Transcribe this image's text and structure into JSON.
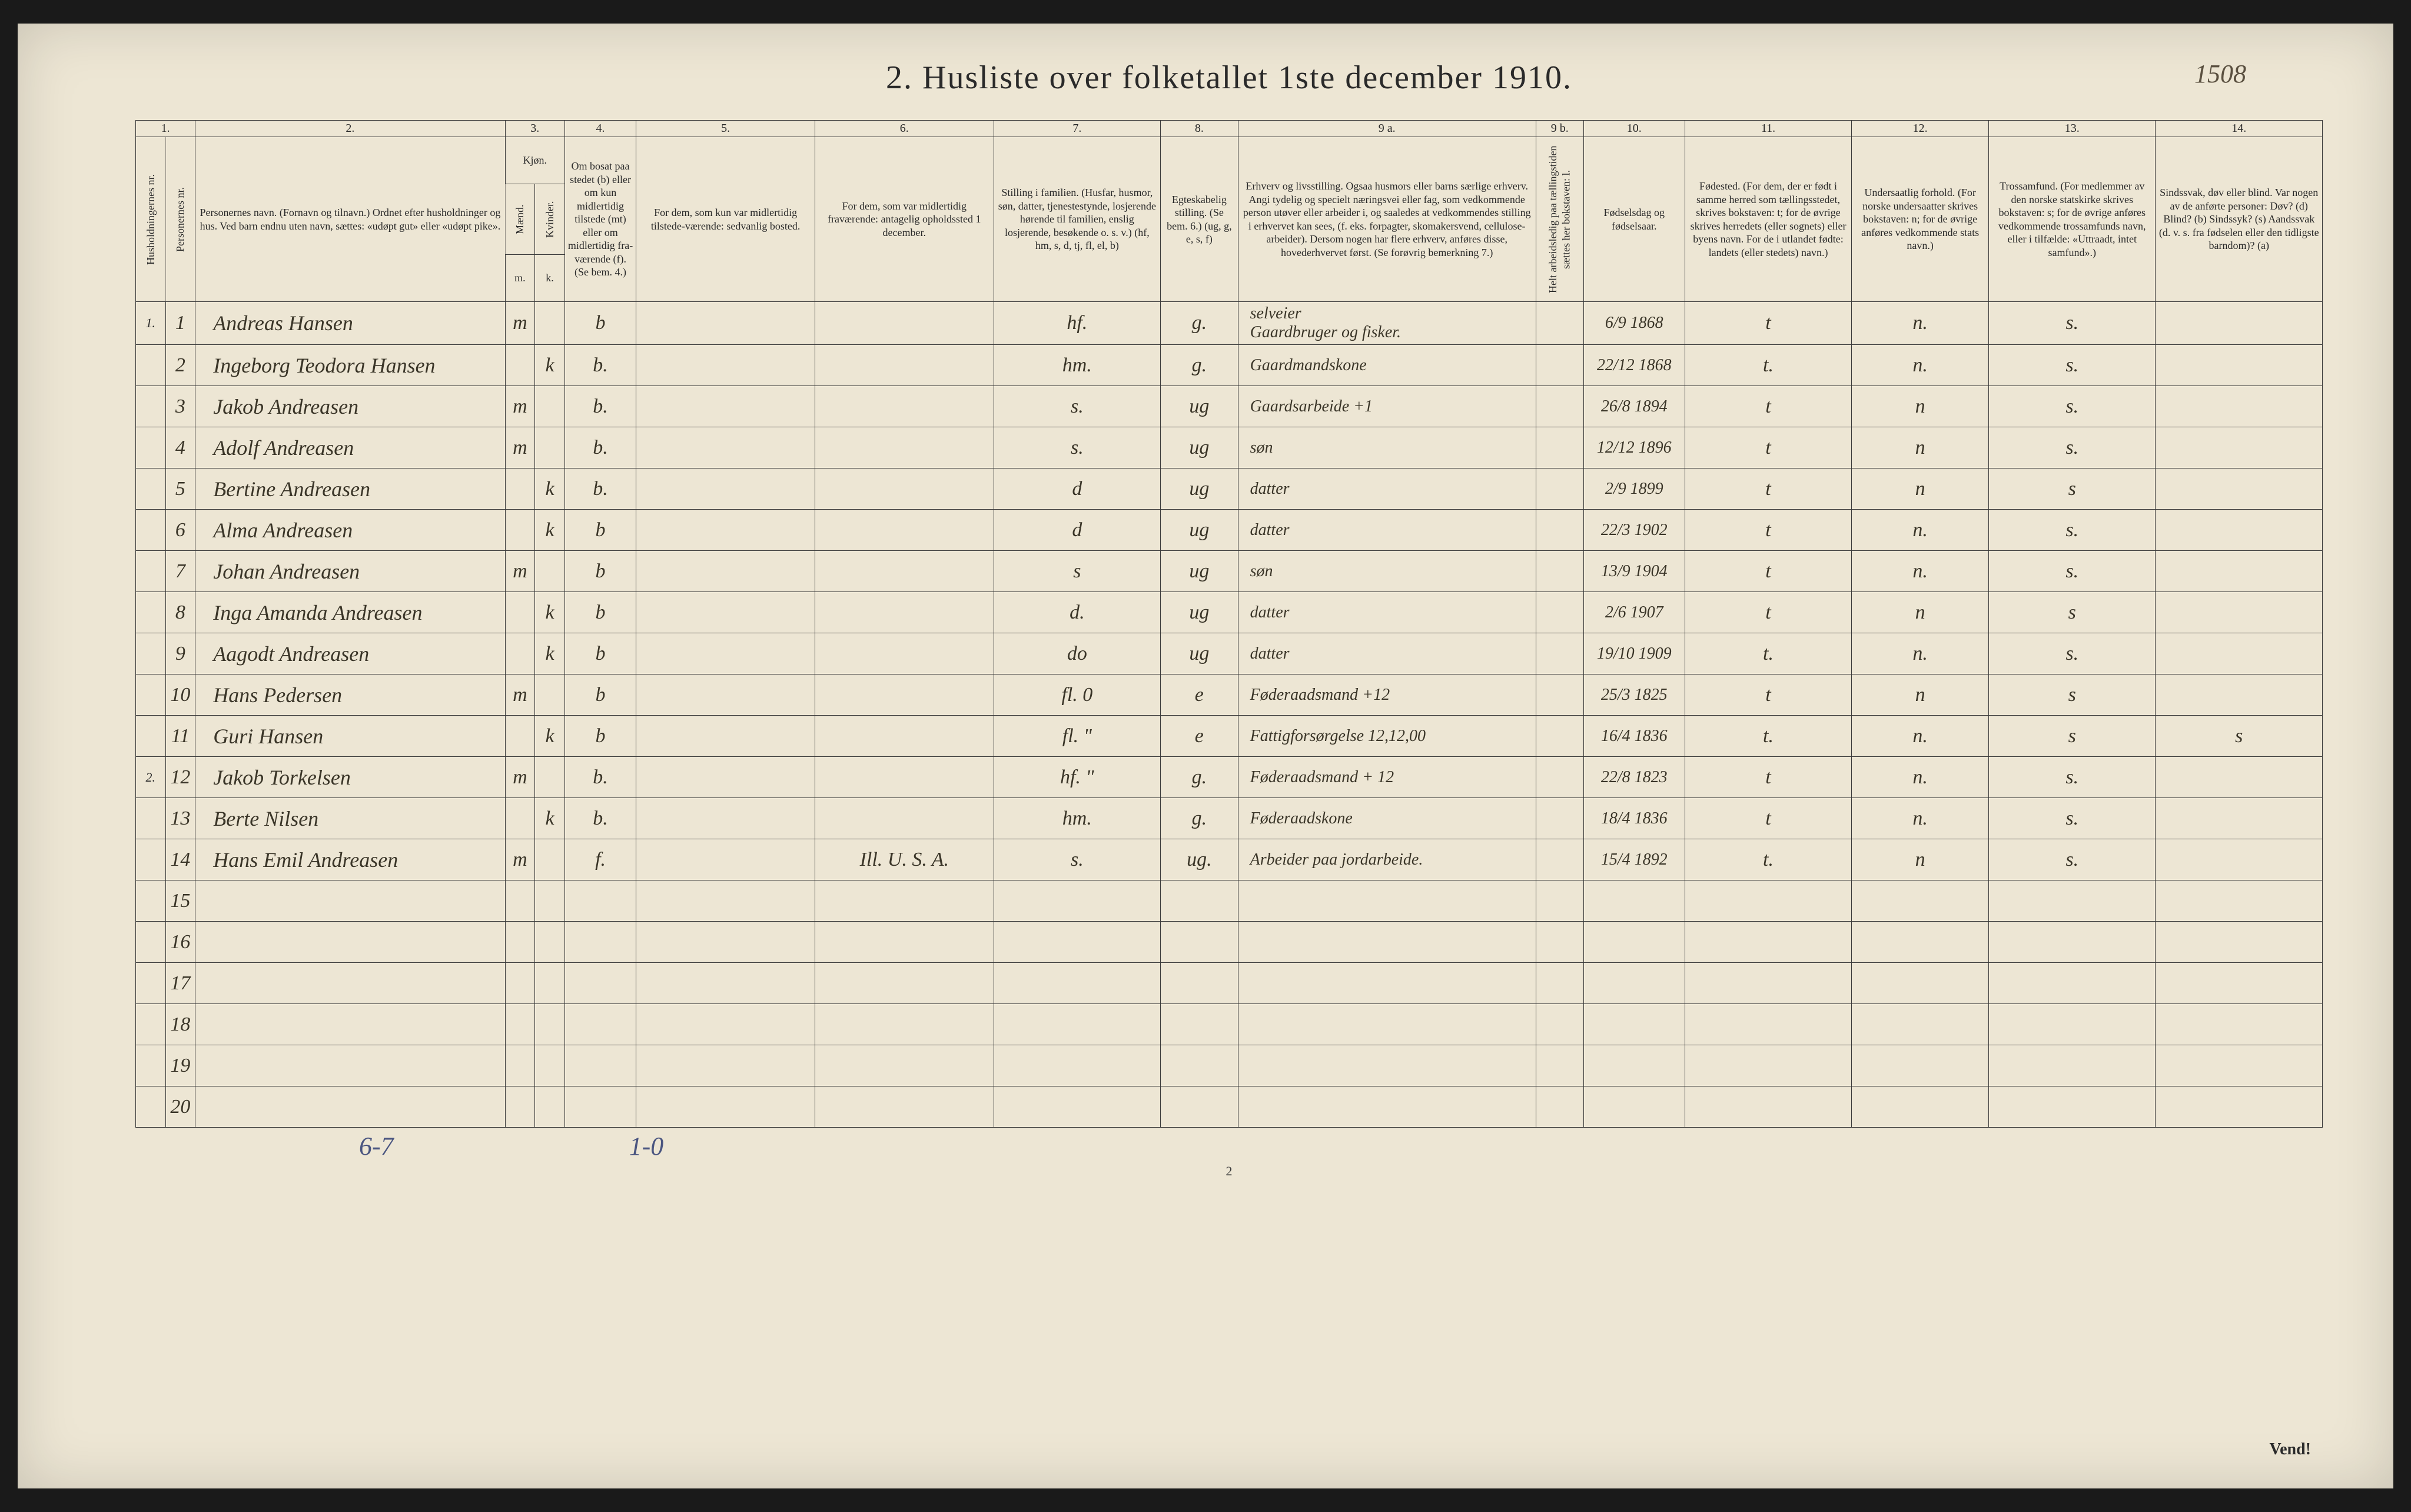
{
  "topright_mark": "1508",
  "title": "2.  Husliste over folketallet 1ste december 1910.",
  "header_nums": [
    "1.",
    "2.",
    "3.",
    "4.",
    "5.",
    "6.",
    "7.",
    "8.",
    "9 a.",
    "9 b.",
    "10.",
    "11.",
    "12.",
    "13.",
    "14."
  ],
  "headers": {
    "col1": "Husholdningernes nr.",
    "col2": "Personernes nr.",
    "col3": "Personernes navn.\n(Fornavn og tilnavn.)\nOrdnet efter husholdninger og hus.\nVed barn endnu uten navn, sættes: «udøpt gut» eller «udøpt pike».",
    "col4_5": "Kjøn.",
    "col4": "Mænd.",
    "col5": "Kvinder.",
    "col4_sub": "m.",
    "col5_sub": "k.",
    "col6": "Om bosat paa stedet (b) eller om kun midlertidig tilstede (mt) eller om midlertidig fra-værende (f). (Se bem. 4.)",
    "col7": "For dem, som kun var midlertidig tilstede-værende:\nsedvanlig bosted.",
    "col8": "For dem, som var midlertidig fraværende:\nantagelig opholdssted 1 december.",
    "col9": "Stilling i familien.\n(Husfar, husmor, søn, datter, tjenestestynde, losjerende hørende til familien, enslig losjerende, besøkende o. s. v.)\n(hf, hm, s, d, tj, fl, el, b)",
    "col10": "Egteskabelig stilling.\n(Se bem. 6.)\n(ug, g, e, s, f)",
    "col11": "Erhverv og livsstilling.\nOgsaa husmors eller barns særlige erhverv. Angi tydelig og specielt næringsvei eller fag, som vedkommende person utøver eller arbeider i, og saaledes at vedkommendes stilling i erhvervet kan sees, (f. eks. forpagter, skomakersvend, cellulose-arbeider). Dersom nogen har flere erhverv, anføres disse, hovederhvervet først.\n(Se forøvrig bemerkning 7.)",
    "col12": "Helt arbeidsledig paa tællingstiden sættes her bokstaven: l.",
    "col13": "Fødselsdag og fødselsaar.",
    "col14": "Fødested.\n(For dem, der er født i samme herred som tællingsstedet, skrives bokstaven: t; for de øvrige skrives herredets (eller sognets) eller byens navn. For de i utlandet fødte: landets (eller stedets) navn.)",
    "col15": "Undersaatlig forhold.\n(For norske undersaatter skrives bokstaven: n; for de øvrige anføres vedkommende stats navn.)",
    "col16": "Trossamfund.\n(For medlemmer av den norske statskirke skrives bokstaven: s; for de øvrige anføres vedkommende trossamfunds navn, eller i tilfælde: «Uttraadt, intet samfund».)",
    "col17": "Sindssvak, døv eller blind.\nVar nogen av de anførte personer:\nDøv? (d)\nBlind? (b)\nSindssyk? (s)\nAandssvak (d. v. s. fra fødselen eller den tidligste barndom)? (a)"
  },
  "rows": [
    {
      "hh": "1.",
      "pn": "1",
      "name": "Andreas Hansen",
      "m": "m",
      "k": "",
      "bos": "b",
      "mt": "",
      "fr": "",
      "fam": "hf.",
      "egt": "g.",
      "erhv": "Gaardbruger og fisker.",
      "erhv_note": "selveier",
      "al": "",
      "fod": "6/9 1868",
      "fsted": "t",
      "und": "n.",
      "tro": "s.",
      "sind": ""
    },
    {
      "hh": "",
      "pn": "2",
      "name": "Ingeborg Teodora Hansen",
      "m": "",
      "k": "k",
      "bos": "b.",
      "mt": "",
      "fr": "",
      "fam": "hm.",
      "egt": "g.",
      "erhv": "Gaardmandskone",
      "al": "",
      "fod": "22/12 1868",
      "fsted": "t.",
      "und": "n.",
      "tro": "s.",
      "sind": ""
    },
    {
      "hh": "",
      "pn": "3",
      "name": "Jakob Andreasen",
      "m": "m",
      "k": "",
      "bos": "b.",
      "mt": "",
      "fr": "",
      "fam": "s.",
      "egt": "ug",
      "erhv": "Gaardsarbeide  +1",
      "al": "",
      "fod": "26/8 1894",
      "fsted": "t",
      "und": "n",
      "tro": "s.",
      "sind": ""
    },
    {
      "hh": "",
      "pn": "4",
      "name": "Adolf Andreasen",
      "m": "m",
      "k": "",
      "bos": "b.",
      "mt": "",
      "fr": "",
      "fam": "s.",
      "egt": "ug",
      "erhv": "søn",
      "al": "",
      "fod": "12/12 1896",
      "fsted": "t",
      "und": "n",
      "tro": "s.",
      "sind": ""
    },
    {
      "hh": "",
      "pn": "5",
      "name": "Bertine Andreasen",
      "m": "",
      "k": "k",
      "bos": "b.",
      "mt": "",
      "fr": "",
      "fam": "d",
      "egt": "ug",
      "erhv": "datter",
      "al": "",
      "fod": "2/9 1899",
      "fsted": "t",
      "und": "n",
      "tro": "s",
      "sind": ""
    },
    {
      "hh": "",
      "pn": "6",
      "name": "Alma Andreasen",
      "m": "",
      "k": "k",
      "bos": "b",
      "mt": "",
      "fr": "",
      "fam": "d",
      "egt": "ug",
      "erhv": "datter",
      "al": "",
      "fod": "22/3 1902",
      "fsted": "t",
      "und": "n.",
      "tro": "s.",
      "sind": ""
    },
    {
      "hh": "",
      "pn": "7",
      "name": "Johan Andreasen",
      "m": "m",
      "k": "",
      "bos": "b",
      "mt": "",
      "fr": "",
      "fam": "s",
      "egt": "ug",
      "erhv": "søn",
      "al": "",
      "fod": "13/9 1904",
      "fsted": "t",
      "und": "n.",
      "tro": "s.",
      "sind": ""
    },
    {
      "hh": "",
      "pn": "8",
      "name": "Inga Amanda Andreasen",
      "m": "",
      "k": "k",
      "bos": "b",
      "mt": "",
      "fr": "",
      "fam": "d.",
      "egt": "ug",
      "erhv": "datter",
      "al": "",
      "fod": "2/6 1907",
      "fsted": "t",
      "und": "n",
      "tro": "s",
      "sind": ""
    },
    {
      "hh": "",
      "pn": "9",
      "name": "Aagodt Andreasen",
      "m": "",
      "k": "k",
      "bos": "b",
      "mt": "",
      "fr": "",
      "fam": "do",
      "egt": "ug",
      "erhv": "datter",
      "al": "",
      "fod": "19/10 1909",
      "fsted": "t.",
      "und": "n.",
      "tro": "s.",
      "sind": ""
    },
    {
      "hh": "",
      "pn": "10",
      "name": "Hans Pedersen",
      "m": "m",
      "k": "",
      "bos": "b",
      "mt": "",
      "fr": "",
      "fam": "fl.   0",
      "egt": "e",
      "erhv": "Føderaadsmand +12",
      "al": "",
      "fod": "25/3 1825",
      "fsted": "t",
      "und": "n",
      "tro": "s",
      "sind": ""
    },
    {
      "hh": "",
      "pn": "11",
      "name": "Guri Hansen",
      "m": "",
      "k": "k",
      "bos": "b",
      "mt": "",
      "fr": "",
      "fam": "fl.   \"",
      "egt": "e",
      "erhv": "Fattigforsørgelse 12,12,00",
      "al": "",
      "fod": "16/4 1836",
      "fsted": "t.",
      "und": "n.",
      "tro": "s",
      "sind": "s"
    },
    {
      "hh": "2.",
      "pn": "12",
      "name": "Jakob Torkelsen",
      "m": "m",
      "k": "",
      "bos": "b.",
      "mt": "",
      "fr": "",
      "fam": "hf.   \"",
      "egt": "g.",
      "erhv": "Føderaadsmand + 12",
      "al": "",
      "fod": "22/8 1823",
      "fsted": "t",
      "und": "n.",
      "tro": "s.",
      "sind": ""
    },
    {
      "hh": "",
      "pn": "13",
      "name": "Berte Nilsen",
      "m": "",
      "k": "k",
      "bos": "b.",
      "mt": "",
      "fr": "",
      "fam": "hm.",
      "egt": "g.",
      "erhv": "Føderaadskone",
      "al": "",
      "fod": "18/4 1836",
      "fsted": "t",
      "und": "n.",
      "tro": "s.",
      "sind": ""
    },
    {
      "hh": "",
      "pn": "14",
      "name": "Hans Emil Andreasen",
      "m": "m",
      "k": "",
      "bos": "f.",
      "mt": "",
      "fr": "Ill. U. S. A.",
      "fam": "s.",
      "egt": "ug.",
      "erhv": "Arbeider paa jordarbeide.",
      "al": "",
      "fod": "15/4 1892",
      "fsted": "t.",
      "und": "n",
      "tro": "s.",
      "sind": ""
    }
  ],
  "empty_rows": [
    15,
    16,
    17,
    18,
    19,
    20
  ],
  "footer_left": "6-7",
  "footer_right": "1-0",
  "page_number": "2",
  "vend": "Vend!"
}
